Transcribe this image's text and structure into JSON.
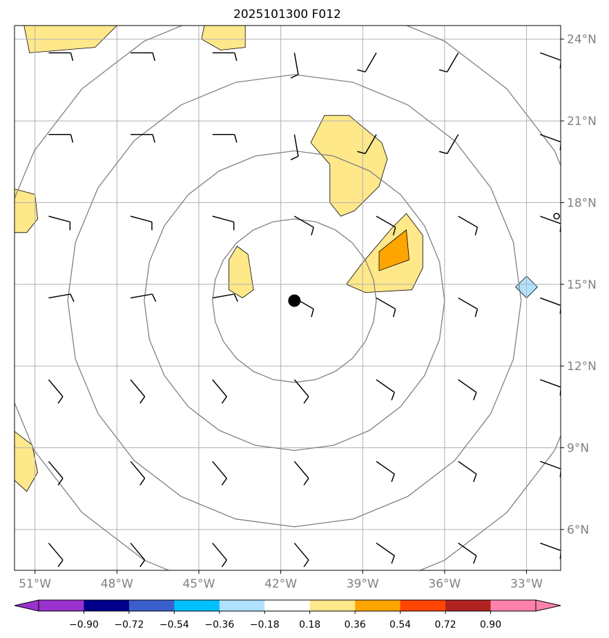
{
  "chart_data": {
    "type": "map-contour",
    "title": "2025101300 F012",
    "lon_range": [
      -51.75,
      -31.75
    ],
    "lat_range": [
      4.5,
      24.5
    ],
    "lon_ticks": [
      -51,
      -48,
      -45,
      -42,
      -39,
      -36,
      -33
    ],
    "lat_ticks": [
      6,
      9,
      12,
      15,
      18,
      21,
      24
    ],
    "lon_tick_labels": [
      "51°W",
      "48°W",
      "45°W",
      "42°W",
      "39°W",
      "36°W",
      "33°W"
    ],
    "lat_tick_labels": [
      "6°N",
      "9°N",
      "12°N",
      "15°N",
      "18°N",
      "21°N",
      "24°N"
    ],
    "grid": true,
    "center_marker": {
      "lon": -41.5,
      "lat": 14.4
    },
    "range_rings_deg": [
      3,
      5.5,
      8.3,
      11
    ],
    "colorbar": {
      "orientation": "horizontal",
      "extend": "both",
      "tick_labels": [
        "−0.90",
        "−0.72",
        "−0.54",
        "−0.36",
        "−0.18",
        "0.18",
        "0.36",
        "0.54",
        "0.72",
        "0.90"
      ],
      "colors": [
        "#9932cc",
        "#00008b",
        "#3a5fcd",
        "#00bfff",
        "#b0e2ff",
        "#ffffff",
        "#ffe88a",
        "#ffa500",
        "#ff4500",
        "#b22222",
        "#ff82ab"
      ]
    },
    "filled_regions": [
      {
        "level": "0.18-0.36",
        "color": "#ffe88a",
        "points": [
          [
            -51.4,
            24.5
          ],
          [
            -48,
            24.5
          ],
          [
            -48.8,
            23.7
          ],
          [
            -51.2,
            23.5
          ]
        ]
      },
      {
        "level": "0.18-0.36",
        "color": "#ffe88a",
        "points": [
          [
            -44.8,
            24.5
          ],
          [
            -43.3,
            24.5
          ],
          [
            -43.3,
            23.7
          ],
          [
            -44.2,
            23.6
          ],
          [
            -44.9,
            24.0
          ]
        ]
      },
      {
        "level": "0.18-0.36",
        "color": "#ffe88a",
        "points": [
          [
            -40.4,
            21.2
          ],
          [
            -39.5,
            21.2
          ],
          [
            -38.3,
            20.2
          ],
          [
            -38.1,
            19.6
          ],
          [
            -38.4,
            18.6
          ],
          [
            -39.3,
            17.7
          ],
          [
            -39.8,
            17.5
          ],
          [
            -40.2,
            18.0
          ],
          [
            -40.2,
            19.4
          ],
          [
            -40.9,
            20.2
          ],
          [
            -40.6,
            20.8
          ]
        ]
      },
      {
        "level": "0.18-0.36",
        "color": "#ffe88a",
        "points": [
          [
            -37.4,
            17.6
          ],
          [
            -36.8,
            16.8
          ],
          [
            -36.8,
            15.6
          ],
          [
            -37.2,
            14.8
          ],
          [
            -38.9,
            14.7
          ],
          [
            -39.6,
            15.0
          ],
          [
            -39,
            15.8
          ],
          [
            -37.9,
            17.1
          ]
        ]
      },
      {
        "level": "0.36-0.54",
        "color": "#ffa500",
        "points": [
          [
            -37.4,
            17.0
          ],
          [
            -37.3,
            15.9
          ],
          [
            -38.4,
            15.5
          ],
          [
            -38.4,
            16.2
          ]
        ]
      },
      {
        "level": "0.18-0.36",
        "color": "#ffe88a",
        "points": [
          [
            -43.6,
            16.4
          ],
          [
            -43.2,
            16.1
          ],
          [
            -43.0,
            14.8
          ],
          [
            -43.4,
            14.5
          ],
          [
            -43.9,
            14.8
          ],
          [
            -43.9,
            15.9
          ]
        ]
      },
      {
        "level": "0.18-0.36",
        "color": "#ffe88a",
        "points": [
          [
            -51.75,
            18.5
          ],
          [
            -51.0,
            18.3
          ],
          [
            -50.9,
            17.4
          ],
          [
            -51.3,
            16.9
          ],
          [
            -51.75,
            16.9
          ]
        ]
      },
      {
        "level": "0.18-0.36",
        "color": "#ffe88a",
        "points": [
          [
            -51.75,
            9.6
          ],
          [
            -51.1,
            9.1
          ],
          [
            -50.9,
            8.1
          ],
          [
            -51.3,
            7.4
          ],
          [
            -51.75,
            7.8
          ]
        ]
      },
      {
        "level": "-0.36--0.18",
        "color": "#b0e2ff",
        "points": [
          [
            -33,
            15.3
          ],
          [
            -32.6,
            14.9
          ],
          [
            -33,
            14.5
          ],
          [
            -33.4,
            14.9
          ]
        ]
      }
    ]
  }
}
